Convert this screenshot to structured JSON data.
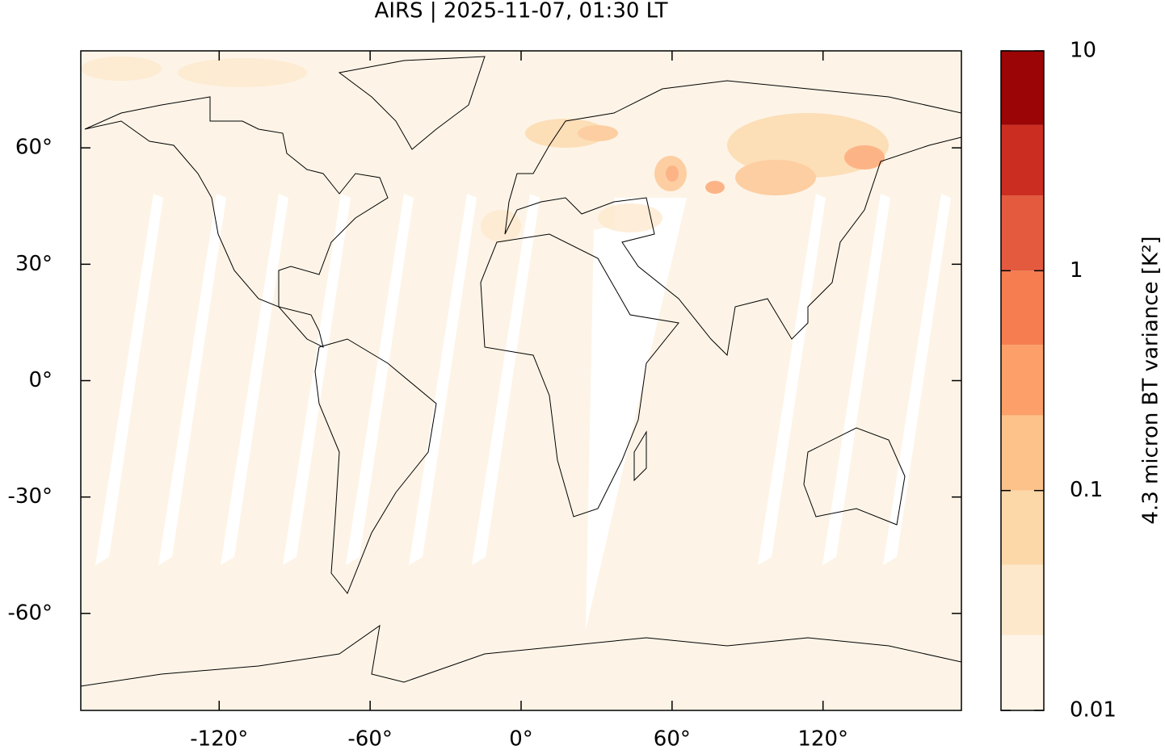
{
  "chart_data": {
    "type": "map",
    "title": "AIRS | 2025-11-07, 01:30 LT",
    "xlim": [
      -175,
      175
    ],
    "ylim": [
      -85,
      85
    ],
    "xticks": [
      {
        "value": -120,
        "label": "-120°"
      },
      {
        "value": -60,
        "label": "-60°"
      },
      {
        "value": 0,
        "label": "0°"
      },
      {
        "value": 60,
        "label": "60°"
      },
      {
        "value": 120,
        "label": "120°"
      }
    ],
    "yticks": [
      {
        "value": 60,
        "label": "60°"
      },
      {
        "value": 30,
        "label": "30°"
      },
      {
        "value": 0,
        "label": "0°"
      },
      {
        "value": -30,
        "label": "-30°"
      },
      {
        "value": -60,
        "label": "-60°"
      }
    ],
    "colorbar": {
      "label": "4.3 micron BT variance [K²]",
      "log_scale": true,
      "lim": [
        0.01,
        10
      ],
      "ticks": [
        0.01,
        0.1,
        1,
        10
      ],
      "levels": [
        0.01,
        0.022,
        0.046,
        0.1,
        0.22,
        0.46,
        1,
        2.2,
        4.6,
        10
      ],
      "colors": [
        "#fef5e8",
        "#fde8cc",
        "#fcd7a8",
        "#fdc28a",
        "#fc9f68",
        "#f57d50",
        "#e45a3e",
        "#cb2d20",
        "#9b0505"
      ]
    }
  }
}
